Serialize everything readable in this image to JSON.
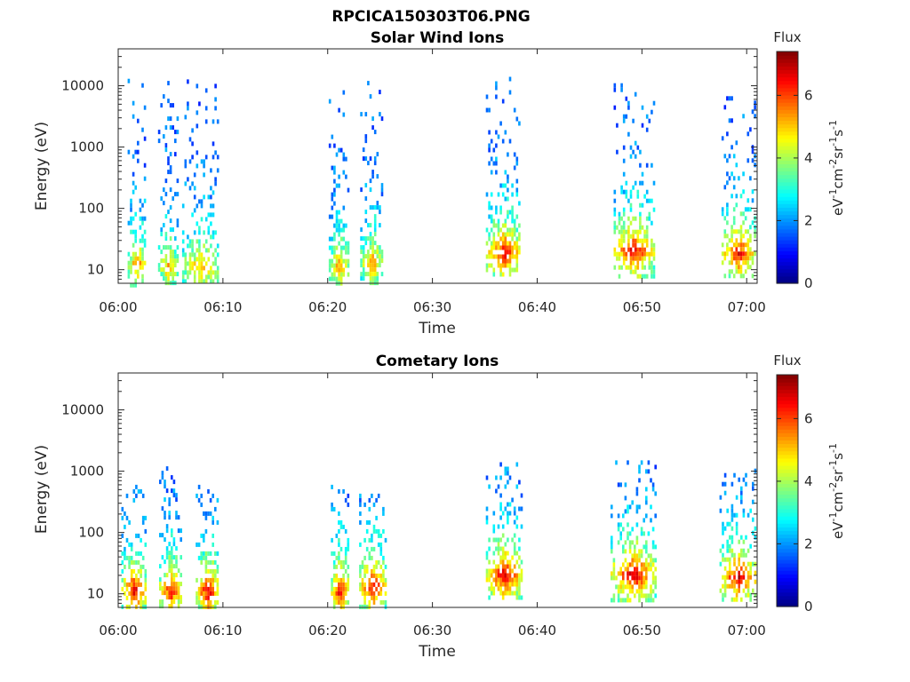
{
  "figure_title": "RPCICA150303T06.PNG",
  "chart_data": [
    {
      "type": "heatmap",
      "title": "Solar Wind Ions",
      "xlabel": "Time",
      "ylabel": "Energy (eV)",
      "x_ticks": [
        "06:00",
        "06:10",
        "06:20",
        "06:30",
        "06:40",
        "06:50",
        "07:00"
      ],
      "x_range_minutes": [
        0,
        61
      ],
      "y_scale": "log",
      "y_ticks": [
        "10",
        "100",
        "1000",
        "10000"
      ],
      "y_range": [
        6,
        40000
      ],
      "colorbar": {
        "title": "Flux",
        "label": "eV-1cm-2sr-1s-1",
        "ticks": [
          "0",
          "2",
          "4",
          "6"
        ],
        "range": [
          0,
          7.4
        ],
        "colormap": "jet"
      },
      "bursts": [
        {
          "start_min": 0.9,
          "end_min": 2.6,
          "lo_eV": 6,
          "hi_eV": 13000,
          "peak_eV": 14,
          "peak_flux": 5.6
        },
        {
          "start_min": 3.8,
          "end_min": 5.7,
          "lo_eV": 6,
          "hi_eV": 12000,
          "peak_eV": 12,
          "peak_flux": 5.4
        },
        {
          "start_min": 6.1,
          "end_min": 9.6,
          "lo_eV": 6,
          "hi_eV": 15000,
          "peak_eV": 12,
          "peak_flux": 5.4
        },
        {
          "start_min": 20.1,
          "end_min": 21.9,
          "lo_eV": 6,
          "hi_eV": 10000,
          "peak_eV": 12,
          "peak_flux": 5.5
        },
        {
          "start_min": 23.1,
          "end_min": 25.3,
          "lo_eV": 6,
          "hi_eV": 12000,
          "peak_eV": 14,
          "peak_flux": 5.5
        },
        {
          "start_min": 35.1,
          "end_min": 38.4,
          "lo_eV": 8,
          "hi_eV": 14000,
          "peak_eV": 20,
          "peak_flux": 6.8
        },
        {
          "start_min": 47.3,
          "end_min": 51.1,
          "lo_eV": 8,
          "hi_eV": 11000,
          "peak_eV": 22,
          "peak_flux": 6.8
        },
        {
          "start_min": 57.6,
          "end_min": 60.8,
          "lo_eV": 8,
          "hi_eV": 8000,
          "peak_eV": 20,
          "peak_flux": 6.6
        }
      ]
    },
    {
      "type": "heatmap",
      "title": "Cometary Ions",
      "xlabel": "Time",
      "ylabel": "Energy (eV)",
      "x_ticks": [
        "06:00",
        "06:10",
        "06:20",
        "06:30",
        "06:40",
        "06:50",
        "07:00"
      ],
      "x_range_minutes": [
        0,
        61
      ],
      "y_scale": "log",
      "y_ticks": [
        "10",
        "100",
        "1000",
        "10000"
      ],
      "y_range": [
        6,
        40000
      ],
      "colorbar": {
        "title": "Flux",
        "label": "eV-1cm-2sr-1s-1",
        "ticks": [
          "0",
          "2",
          "4",
          "6"
        ],
        "range": [
          0,
          7.4
        ],
        "colormap": "jet"
      },
      "bursts": [
        {
          "start_min": 0.3,
          "end_min": 2.6,
          "lo_eV": 6,
          "hi_eV": 600,
          "peak_eV": 12,
          "peak_flux": 6.9
        },
        {
          "start_min": 3.9,
          "end_min": 6.0,
          "lo_eV": 6,
          "hi_eV": 1200,
          "peak_eV": 12,
          "peak_flux": 6.6
        },
        {
          "start_min": 7.4,
          "end_min": 9.6,
          "lo_eV": 6,
          "hi_eV": 600,
          "peak_eV": 12,
          "peak_flux": 6.9
        },
        {
          "start_min": 20.3,
          "end_min": 21.9,
          "lo_eV": 6,
          "hi_eV": 600,
          "peak_eV": 12,
          "peak_flux": 6.9
        },
        {
          "start_min": 23.0,
          "end_min": 25.5,
          "lo_eV": 6,
          "hi_eV": 600,
          "peak_eV": 14,
          "peak_flux": 6.9
        },
        {
          "start_min": 35.1,
          "end_min": 38.5,
          "lo_eV": 8,
          "hi_eV": 1400,
          "peak_eV": 22,
          "peak_flux": 7.0
        },
        {
          "start_min": 47.0,
          "end_min": 51.3,
          "lo_eV": 8,
          "hi_eV": 1500,
          "peak_eV": 22,
          "peak_flux": 7.0
        },
        {
          "start_min": 57.4,
          "end_min": 60.9,
          "lo_eV": 8,
          "hi_eV": 1100,
          "peak_eV": 20,
          "peak_flux": 6.9
        }
      ]
    }
  ]
}
